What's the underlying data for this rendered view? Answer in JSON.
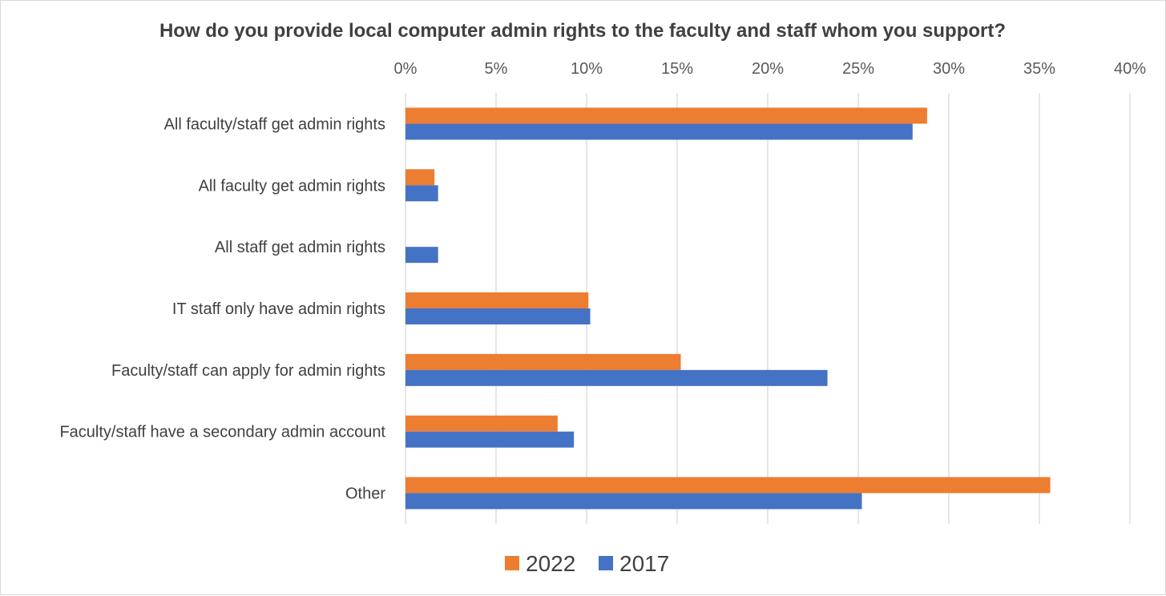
{
  "chart_data": {
    "type": "bar",
    "orientation": "horizontal",
    "title": "How do you provide local computer admin rights to the faculty and staff whom you support?",
    "categories": [
      "All faculty/staff get admin rights",
      "All faculty get admin rights",
      "All staff get admin rights",
      "IT staff only have admin rights",
      "Faculty/staff can apply for admin rights",
      "Faculty/staff have a secondary admin account",
      "Other"
    ],
    "series": [
      {
        "name": "2022",
        "color": "#ED7D31",
        "values": [
          28.8,
          1.6,
          0,
          10.1,
          15.2,
          8.4,
          35.6
        ]
      },
      {
        "name": "2017",
        "color": "#4472C4",
        "values": [
          28.0,
          1.8,
          1.8,
          10.2,
          23.3,
          9.3,
          25.2
        ]
      }
    ],
    "xlim": [
      0,
      40
    ],
    "xticks": [
      0,
      5,
      10,
      15,
      20,
      25,
      30,
      35,
      40
    ],
    "tick_format": "percent",
    "xlabel": "",
    "ylabel": "",
    "grid": true,
    "axis_position": "top",
    "legend_position": "bottom"
  }
}
